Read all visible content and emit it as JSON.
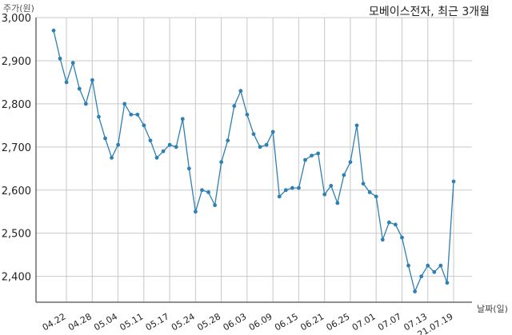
{
  "chart_data": {
    "type": "line",
    "title": "모베이스전자, 최근 3개월",
    "ylabel": "주가(원)",
    "xlabel": "날짜(일)",
    "ylim": [
      2340,
      3000
    ],
    "yticks": [
      2400,
      2500,
      2600,
      2700,
      2800,
      2900,
      3000
    ],
    "ytick_labels": [
      "2,400",
      "2,500",
      "2,600",
      "2,700",
      "2,800",
      "2,900",
      "3,000"
    ],
    "xtick_labels": [
      "04.22",
      "04.28",
      "05.04",
      "05.11",
      "05.17",
      "05.24",
      "05.28",
      "06.03",
      "06.09",
      "06.15",
      "06.21",
      "06.25",
      "07.01",
      "07.07",
      "07.13",
      "21.07.19"
    ],
    "grid": true,
    "color": "#2e80b3",
    "series": [
      {
        "values": [
          2970,
          2905,
          2850,
          2895,
          2835,
          2800,
          2855,
          2770,
          2720,
          2675,
          2705,
          2800,
          2775,
          2775,
          2750,
          2715,
          2675,
          2690,
          2705,
          2700,
          2765,
          2650,
          2550,
          2600,
          2595,
          2565,
          2665,
          2715,
          2795,
          2830,
          2775,
          2730,
          2700,
          2705,
          2735,
          2585,
          2600,
          2605,
          2605,
          2670,
          2680,
          2685,
          2590,
          2610,
          2570,
          2635,
          2665,
          2750,
          2615,
          2595,
          2585,
          2485,
          2525,
          2520,
          2490,
          2425,
          2365,
          2400,
          2425,
          2410,
          2425,
          2385,
          2620
        ]
      }
    ]
  }
}
